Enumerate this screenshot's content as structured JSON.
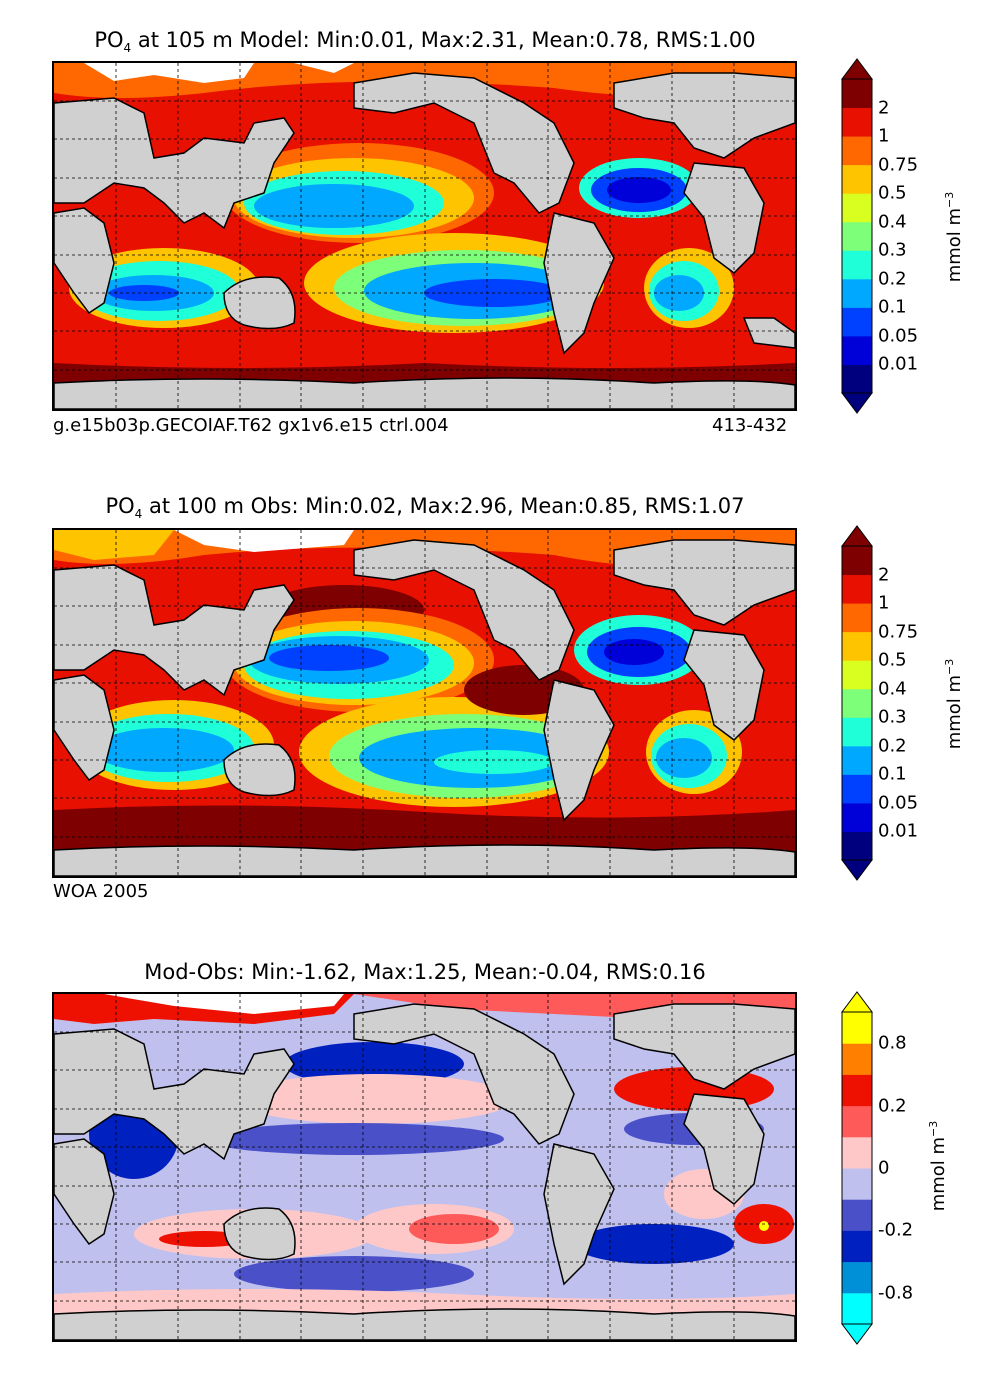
{
  "panels": [
    {
      "title_chem": "PO",
      "title_sub": "4",
      "title_rest": " at 105 m Model: Min:0.01, Max:2.31, Mean:0.78, RMS:1.00",
      "foot_left": "g.e15b03p.GECOIAF.T62 gx1v6.e15 ctrl.004",
      "foot_right": "413-432",
      "colorbar_unit": "mmol m",
      "colorbar_unit_exp": "−3"
    },
    {
      "title_chem": "PO",
      "title_sub": "4",
      "title_rest": " at 100 m Obs: Min:0.02, Max:2.96, Mean:0.85, RMS:1.07",
      "foot_left": "WOA 2005",
      "colorbar_unit": "mmol m",
      "colorbar_unit_exp": "−3"
    },
    {
      "title_text": "Mod-Obs: Min:-1.62, Max:1.25, Mean:-0.04, RMS:0.16",
      "colorbar_unit": "mmol m",
      "colorbar_unit_exp": "−3"
    }
  ],
  "chart_data": [
    {
      "type": "heatmap",
      "title": "PO4 at 105 m Model: Min:0.01, Max:2.31, Mean:0.78, RMS:1.00",
      "variable": "PO4",
      "depth_m": 105,
      "source": "Model",
      "stats": {
        "min": 0.01,
        "max": 2.31,
        "mean": 0.78,
        "rms": 1.0
      },
      "colorbar": {
        "levels": [
          "0.01",
          "0.05",
          "0.1",
          "0.2",
          "0.3",
          "0.4",
          "0.5",
          "0.75",
          "1",
          "2"
        ],
        "colors": [
          "#00007f",
          "#0000d8",
          "#0040ff",
          "#00a8ff",
          "#1fffd8",
          "#7dff7a",
          "#d8ff1f",
          "#ffc400",
          "#ff6800",
          "#e81000",
          "#7f0000"
        ],
        "extend": "both",
        "unit": "mmol m-3"
      }
    },
    {
      "type": "heatmap",
      "title": "PO4 at 100 m Obs: Min:0.02, Max:2.96, Mean:0.85, RMS:1.07",
      "variable": "PO4",
      "depth_m": 100,
      "source": "Obs (WOA 2005)",
      "stats": {
        "min": 0.02,
        "max": 2.96,
        "mean": 0.85,
        "rms": 1.07
      },
      "colorbar": {
        "levels": [
          "0.01",
          "0.05",
          "0.1",
          "0.2",
          "0.3",
          "0.4",
          "0.5",
          "0.75",
          "1",
          "2"
        ],
        "colors": [
          "#00007f",
          "#0000d8",
          "#0040ff",
          "#00a8ff",
          "#1fffd8",
          "#7dff7a",
          "#d8ff1f",
          "#ffc400",
          "#ff6800",
          "#e81000",
          "#7f0000"
        ],
        "extend": "both",
        "unit": "mmol m-3"
      }
    },
    {
      "type": "heatmap",
      "title": "Mod-Obs: Min:-1.62, Max:1.25, Mean:-0.04, RMS:0.16",
      "stats": {
        "min": -1.62,
        "max": 1.25,
        "mean": -0.04,
        "rms": 0.16
      },
      "colorbar": {
        "tick_labels": [
          "0.8",
          "0.2",
          "0",
          "-0.2",
          "-0.8"
        ],
        "colors": [
          "#00ffff",
          "#0090d8",
          "#0020c0",
          "#4a50c8",
          "#c0c0ee",
          "#ffc8c8",
          "#ff5a5a",
          "#ee1000",
          "#ff8000",
          "#ffff00"
        ],
        "extend": "both",
        "unit": "mmol m-3"
      }
    }
  ]
}
